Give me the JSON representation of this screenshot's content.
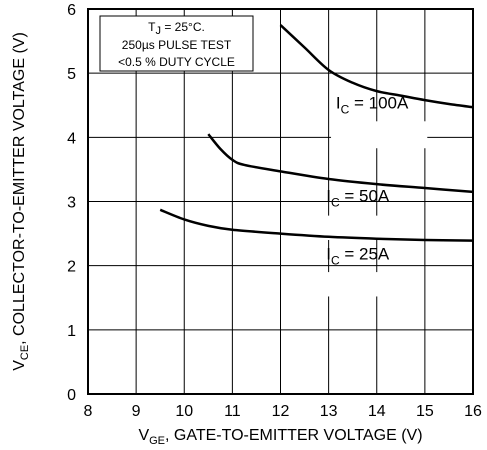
{
  "chart_data": {
    "type": "line",
    "xlabel": {
      "main": "V",
      "sub": "GE",
      "rest": ", GATE-TO-EMITTER VOLTAGE (V)"
    },
    "ylabel": {
      "main": "V",
      "sub": "CE",
      "rest": ", COLLECTOR-TO-EMITTER VOLTAGE (V)"
    },
    "xlim": [
      8,
      16
    ],
    "ylim": [
      0,
      6
    ],
    "x_ticks": [
      "8",
      "9",
      "10",
      "11",
      "12",
      "13",
      "14",
      "15",
      "16"
    ],
    "y_ticks": [
      "0",
      "1",
      "2",
      "3",
      "4",
      "5",
      "6"
    ],
    "grid": true,
    "annotation": {
      "line1_main": "T",
      "line1_sub": "J",
      "line1_rest": " = 25°C.",
      "line2": "250µs PULSE TEST",
      "line3": "<0.5 % DUTY CYCLE"
    },
    "series": [
      {
        "label_main": "I",
        "label_sub": "C",
        "label_rest": " = 100A",
        "points": [
          [
            12.0,
            5.75
          ],
          [
            12.5,
            5.4
          ],
          [
            13.0,
            5.05
          ],
          [
            13.5,
            4.85
          ],
          [
            14.0,
            4.72
          ],
          [
            14.5,
            4.65
          ],
          [
            15.0,
            4.58
          ],
          [
            15.5,
            4.52
          ],
          [
            16.0,
            4.47
          ]
        ]
      },
      {
        "label_main": "I",
        "label_sub": "C",
        "label_rest": " = 50A",
        "points": [
          [
            10.5,
            4.05
          ],
          [
            10.75,
            3.82
          ],
          [
            11.0,
            3.65
          ],
          [
            11.25,
            3.57
          ],
          [
            12.0,
            3.47
          ],
          [
            13.0,
            3.35
          ],
          [
            14.0,
            3.27
          ],
          [
            15.0,
            3.21
          ],
          [
            16.0,
            3.15
          ]
        ]
      },
      {
        "label_main": "I",
        "label_sub": "C",
        "label_rest": " = 25A",
        "points": [
          [
            9.5,
            2.87
          ],
          [
            10.0,
            2.72
          ],
          [
            10.5,
            2.62
          ],
          [
            11.0,
            2.56
          ],
          [
            12.0,
            2.5
          ],
          [
            13.0,
            2.45
          ],
          [
            14.0,
            2.42
          ],
          [
            15.0,
            2.4
          ],
          [
            16.0,
            2.39
          ]
        ]
      }
    ]
  }
}
